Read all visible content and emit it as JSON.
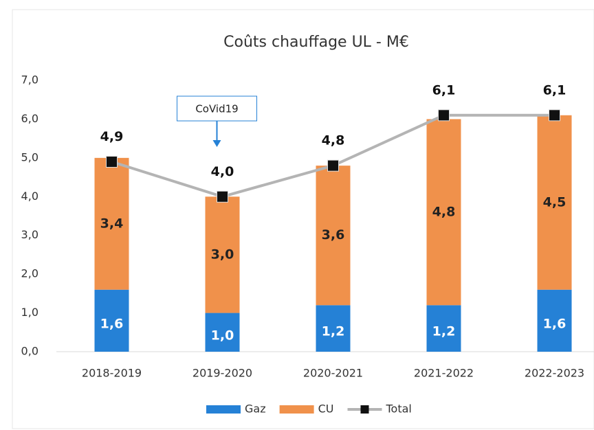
{
  "chart_data": {
    "type": "bar",
    "stacked": true,
    "title": "Coûts  chauffage UL - M€",
    "annotation": "CoVid19",
    "categories": [
      "2018-2019",
      "2019-2020",
      "2020-2021",
      "2021-2022",
      "2022-2023"
    ],
    "series": [
      {
        "name": "Gaz",
        "type": "bar",
        "color": "#2581d6",
        "values": [
          1.6,
          1.0,
          1.2,
          1.2,
          1.6
        ],
        "value_labels": [
          "1,6",
          "1,0",
          "1,2",
          "1,2",
          "1,6"
        ]
      },
      {
        "name": "CU",
        "type": "bar",
        "color": "#f0914b",
        "values": [
          3.4,
          3.0,
          3.6,
          4.8,
          4.5
        ],
        "value_labels": [
          "3,4",
          "3,0",
          "3,6",
          "4,8",
          "4,5"
        ]
      },
      {
        "name": "Total",
        "type": "line",
        "color": "#b4b4b4",
        "values": [
          4.9,
          4.0,
          4.8,
          6.1,
          6.1
        ],
        "value_labels": [
          "4,9",
          "4,0",
          "4,8",
          "6,1",
          "6,1"
        ]
      }
    ],
    "ylim": [
      0,
      7
    ],
    "yticks": [
      {
        "value": 0,
        "label": "0,0"
      },
      {
        "value": 1,
        "label": "1,0"
      },
      {
        "value": 2,
        "label": "2,0"
      },
      {
        "value": 3,
        "label": "3,0"
      },
      {
        "value": 4,
        "label": "4,0"
      },
      {
        "value": 5,
        "label": "5,0"
      },
      {
        "value": 6,
        "label": "6,0"
      },
      {
        "value": 7,
        "label": "7,0"
      }
    ],
    "legend": "bottom"
  }
}
